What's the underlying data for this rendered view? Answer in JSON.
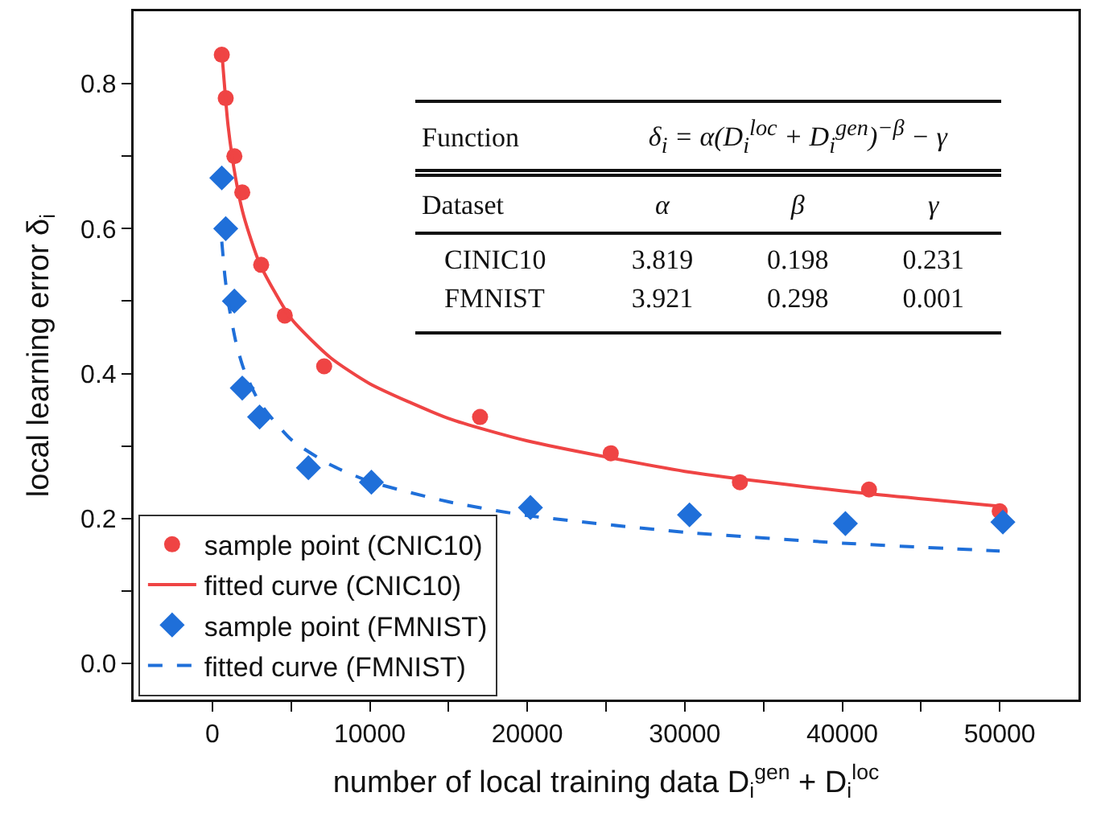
{
  "chart_data": {
    "type": "scatter",
    "xlabel": "number of local training data D$_{i}$$^{gen}$ + D$_{i}$$^{loc}$",
    "ylabel": "local learning error δ$_{i}$",
    "xlim": [
      -5000,
      55000
    ],
    "xticks": [
      0,
      {
        "value": 5000,
        "label": null
      },
      10000,
      {
        "value": 15000,
        "label": null
      },
      20000,
      {
        "value": 25000,
        "label": null
      },
      30000,
      {
        "value": 35000,
        "label": null
      },
      40000,
      {
        "value": 45000,
        "label": null
      },
      50000
    ],
    "ylim": [
      -0.05,
      0.9
    ],
    "yticks": [
      {
        "value": 0,
        "label": "0.0"
      },
      {
        "value": 0.1,
        "label": null
      },
      {
        "value": 0.2,
        "label": "0.2"
      },
      {
        "value": 0.3,
        "label": null
      },
      {
        "value": 0.4,
        "label": "0.4"
      },
      {
        "value": 0.5,
        "label": null
      },
      {
        "value": 0.6,
        "label": "0.6"
      },
      {
        "value": 0.7,
        "label": null
      },
      {
        "value": 0.8,
        "label": "0.8"
      }
    ],
    "grid": false,
    "legend": "bottom left",
    "series": [
      {
        "name": "sample point (CNIC10)",
        "type": "scatter",
        "marker": "circle",
        "color": "#ef4444",
        "x": [
          600,
          850,
          1400,
          1900,
          3100,
          4600,
          7100,
          17000,
          25300,
          33500,
          41700,
          50000
        ],
        "values": [
          0.84,
          0.78,
          0.7,
          0.65,
          0.55,
          0.48,
          0.41,
          0.34,
          0.29,
          0.25,
          0.24,
          0.21
        ]
      },
      {
        "name": "fitted curve (CNIC10)",
        "type": "line",
        "marker": "none",
        "line_style": "solid",
        "color": "#ef4444",
        "x": [
          600,
          1000,
          1500,
          2000,
          3000,
          5000,
          7500,
          10000,
          15000,
          20000,
          30000,
          40000,
          50000
        ],
        "values": [
          0.845,
          0.742,
          0.667,
          0.617,
          0.552,
          0.476,
          0.422,
          0.386,
          0.338,
          0.307,
          0.265,
          0.238,
          0.217
        ]
      },
      {
        "name": "sample point (FMNIST)",
        "type": "scatter",
        "marker": "diamond",
        "color": "#1f6fd9",
        "x": [
          600,
          850,
          1400,
          1900,
          3000,
          6100,
          10100,
          20200,
          30300,
          40200,
          50200
        ],
        "values": [
          0.67,
          0.6,
          0.5,
          0.38,
          0.34,
          0.27,
          0.25,
          0.215,
          0.205,
          0.193,
          0.195
        ]
      },
      {
        "name": "fitted curve (FMNIST)",
        "type": "line",
        "marker": "none",
        "line_style": "dashed",
        "color": "#1f6fd9",
        "x": [
          600,
          800,
          1000,
          1500,
          2000,
          3000,
          5000,
          7500,
          10000,
          15000,
          20000,
          30000,
          40000,
          50000
        ],
        "values": [
          0.582,
          0.534,
          0.5,
          0.443,
          0.406,
          0.36,
          0.309,
          0.274,
          0.251,
          0.223,
          0.204,
          0.181,
          0.166,
          0.155
        ]
      }
    ],
    "annotations": [
      "Function",
      "δ$_{i}$ = α(D$_{i}$$^{loc}$ + D$_{i}$$^{gen}$)$^{−β}$ − γ",
      "Dataset",
      "α",
      "β",
      "γ",
      "CINIC10",
      "3.819",
      "0.198",
      "0.231",
      "FMNIST",
      "3.921",
      "0.298",
      "0.001"
    ]
  }
}
